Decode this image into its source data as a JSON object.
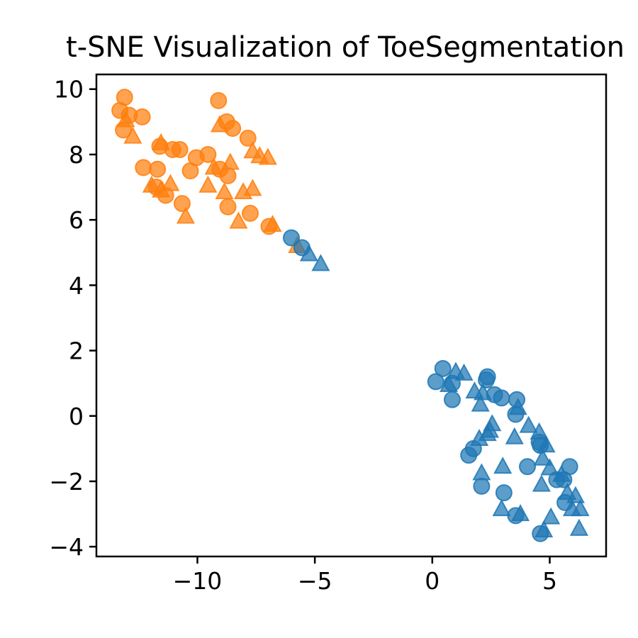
{
  "chart_data": {
    "type": "scatter",
    "title": "t-SNE Visualization of ToeSegmentation",
    "xlabel": "",
    "ylabel": "",
    "xlim": [
      -14.3,
      7.4
    ],
    "ylim": [
      -4.3,
      10.45
    ],
    "x_ticks": [
      -10,
      -5,
      0,
      5
    ],
    "x_tick_labels": [
      "−10",
      "−5",
      "0",
      "5"
    ],
    "y_ticks": [
      -4,
      -2,
      0,
      2,
      4,
      6,
      8,
      10
    ],
    "y_tick_labels": [
      "−4",
      "−2",
      "0",
      "2",
      "4",
      "6",
      "8",
      "10"
    ],
    "grid": false,
    "legend": null,
    "series": [
      {
        "color": "#ff7f0e",
        "marker": "circle",
        "points": [
          [
            -13.1,
            9.75
          ],
          [
            -13.3,
            9.35
          ],
          [
            -12.9,
            9.2
          ],
          [
            -12.35,
            9.15
          ],
          [
            -13.15,
            8.75
          ],
          [
            -9.1,
            9.65
          ],
          [
            -8.75,
            9.0
          ],
          [
            -8.5,
            8.8
          ],
          [
            -7.85,
            8.5
          ],
          [
            -11.6,
            8.25
          ],
          [
            -11.05,
            8.15
          ],
          [
            -10.75,
            8.15
          ],
          [
            -10.05,
            7.9
          ],
          [
            -9.55,
            8.0
          ],
          [
            -12.3,
            7.6
          ],
          [
            -11.7,
            7.55
          ],
          [
            -10.3,
            7.5
          ],
          [
            -9.05,
            7.55
          ],
          [
            -8.7,
            7.35
          ],
          [
            -11.75,
            7.0
          ],
          [
            -11.35,
            6.75
          ],
          [
            -10.65,
            6.5
          ],
          [
            -8.7,
            6.4
          ],
          [
            -7.75,
            6.2
          ],
          [
            -6.95,
            5.8
          ]
        ]
      },
      {
        "color": "#ff7f0e",
        "marker": "triangle",
        "points": [
          [
            -13.05,
            9.05
          ],
          [
            -12.75,
            8.55
          ],
          [
            -11.55,
            8.35
          ],
          [
            -9.05,
            8.9
          ],
          [
            -7.65,
            8.1
          ],
          [
            -7.35,
            7.95
          ],
          [
            -7.0,
            7.9
          ],
          [
            -8.6,
            7.75
          ],
          [
            -9.3,
            7.6
          ],
          [
            -11.15,
            7.1
          ],
          [
            -11.55,
            6.9
          ],
          [
            -9.55,
            7.05
          ],
          [
            -8.85,
            6.85
          ],
          [
            -7.65,
            6.95
          ],
          [
            -8.05,
            6.85
          ],
          [
            -11.95,
            7.05
          ],
          [
            -10.5,
            6.1
          ],
          [
            -8.25,
            5.95
          ],
          [
            -6.8,
            5.85
          ],
          [
            -5.75,
            5.2
          ]
        ]
      },
      {
        "color": "#1f77b4",
        "marker": "circle",
        "points": [
          [
            -6.0,
            5.45
          ],
          [
            -5.55,
            5.15
          ],
          [
            0.45,
            1.45
          ],
          [
            0.15,
            1.05
          ],
          [
            0.85,
            1.0
          ],
          [
            0.85,
            0.5
          ],
          [
            2.35,
            1.2
          ],
          [
            2.3,
            1.1
          ],
          [
            2.65,
            0.65
          ],
          [
            2.95,
            0.55
          ],
          [
            3.6,
            0.5
          ],
          [
            3.55,
            0.05
          ],
          [
            4.55,
            -0.8
          ],
          [
            4.6,
            -0.9
          ],
          [
            1.55,
            -1.2
          ],
          [
            1.75,
            -1.0
          ],
          [
            4.05,
            -1.55
          ],
          [
            5.85,
            -1.55
          ],
          [
            5.3,
            -1.95
          ],
          [
            5.6,
            -1.95
          ],
          [
            2.1,
            -2.15
          ],
          [
            3.05,
            -2.35
          ],
          [
            5.65,
            -2.65
          ],
          [
            3.55,
            -3.05
          ],
          [
            4.6,
            -3.6
          ]
        ]
      },
      {
        "color": "#1f77b4",
        "marker": "triangle",
        "points": [
          [
            -5.25,
            4.95
          ],
          [
            -4.75,
            4.65
          ],
          [
            1.0,
            1.35
          ],
          [
            1.35,
            1.3
          ],
          [
            0.7,
            0.95
          ],
          [
            1.8,
            0.75
          ],
          [
            2.15,
            0.7
          ],
          [
            2.05,
            0.35
          ],
          [
            3.65,
            0.25
          ],
          [
            2.55,
            -0.25
          ],
          [
            2.45,
            -0.45
          ],
          [
            4.1,
            -0.3
          ],
          [
            3.5,
            -0.65
          ],
          [
            2.35,
            -0.55
          ],
          [
            4.55,
            -0.5
          ],
          [
            4.85,
            -0.9
          ],
          [
            2.0,
            -0.7
          ],
          [
            2.1,
            -1.75
          ],
          [
            3.0,
            -1.55
          ],
          [
            4.7,
            -1.3
          ],
          [
            5.0,
            -1.6
          ],
          [
            5.5,
            -1.8
          ],
          [
            4.65,
            -2.1
          ],
          [
            5.75,
            -2.35
          ],
          [
            6.1,
            -2.45
          ],
          [
            6.3,
            -2.85
          ],
          [
            5.95,
            -2.85
          ],
          [
            2.95,
            -2.85
          ],
          [
            3.75,
            -3.0
          ],
          [
            5.05,
            -3.1
          ],
          [
            6.25,
            -3.45
          ],
          [
            4.75,
            -3.5
          ]
        ]
      }
    ]
  }
}
